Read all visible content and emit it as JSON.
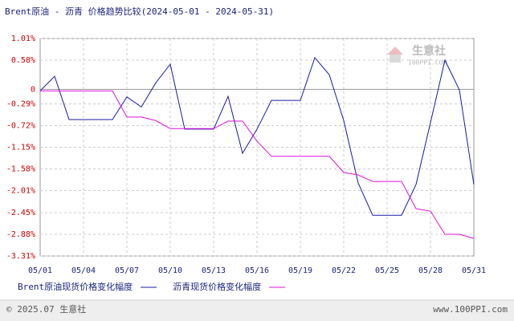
{
  "chart_data": {
    "type": "line",
    "title": "Brent原油 - 沥青 价格趋势比较(2024-05-01 - 2024-05-31)",
    "categories": [
      "05/01",
      null,
      null,
      "05/04",
      null,
      null,
      "05/07",
      null,
      null,
      "05/10",
      null,
      null,
      "05/13",
      null,
      null,
      "05/16",
      null,
      null,
      "05/19",
      null,
      null,
      "05/22",
      null,
      null,
      "05/25",
      null,
      null,
      "05/28",
      null,
      null,
      "05/31"
    ],
    "series": [
      {
        "name": "Brent原油现货价格变化幅度",
        "color": "#1a1aa8",
        "values": [
          -0.03,
          0.26,
          -0.6,
          -0.6,
          -0.6,
          -0.6,
          -0.15,
          -0.35,
          0.13,
          0.5,
          -0.79,
          -0.79,
          -0.79,
          -0.14,
          -1.27,
          -0.79,
          -0.22,
          -0.22,
          -0.22,
          0.63,
          0.29,
          -0.62,
          -1.86,
          -2.5,
          -2.5,
          -2.5,
          -1.89,
          -0.66,
          0.58,
          -0.01,
          -1.89
        ]
      },
      {
        "name": "沥青现货价格变化幅度",
        "color": "#e010e0",
        "values": [
          -0.03,
          -0.03,
          -0.03,
          -0.03,
          -0.03,
          -0.03,
          -0.55,
          -0.55,
          -0.62,
          -0.78,
          -0.78,
          -0.78,
          -0.78,
          -0.63,
          -0.63,
          -1.03,
          -1.33,
          -1.33,
          -1.33,
          -1.33,
          -1.33,
          -1.65,
          -1.7,
          -1.83,
          -1.83,
          -1.83,
          -2.37,
          -2.42,
          -2.88,
          -2.88,
          -2.96
        ]
      }
    ],
    "ylim": [
      -3.31,
      1.01
    ],
    "yticks": [
      {
        "value": 1.01,
        "label": "1.01%"
      },
      {
        "value": 0.58,
        "label": "0.58%"
      },
      0,
      {
        "value": -0.29,
        "label": "-0.29%"
      },
      {
        "value": -0.72,
        "label": "-0.72%"
      },
      {
        "value": -1.15,
        "label": "-1.15%"
      },
      {
        "value": -1.58,
        "label": "-1.58%"
      },
      {
        "value": -2.01,
        "label": "-2.01%"
      },
      {
        "value": -2.45,
        "label": "-2.45%"
      },
      {
        "value": -2.88,
        "label": "-2.88%"
      },
      {
        "value": -3.31,
        "label": "-3.31%"
      }
    ],
    "grid": true,
    "legend": "bottom",
    "watermark": [
      "生意社",
      "100PPI.COM"
    ]
  },
  "footer": {
    "left": "© 2025.07 生意社",
    "right": "www.100PPI.com"
  }
}
